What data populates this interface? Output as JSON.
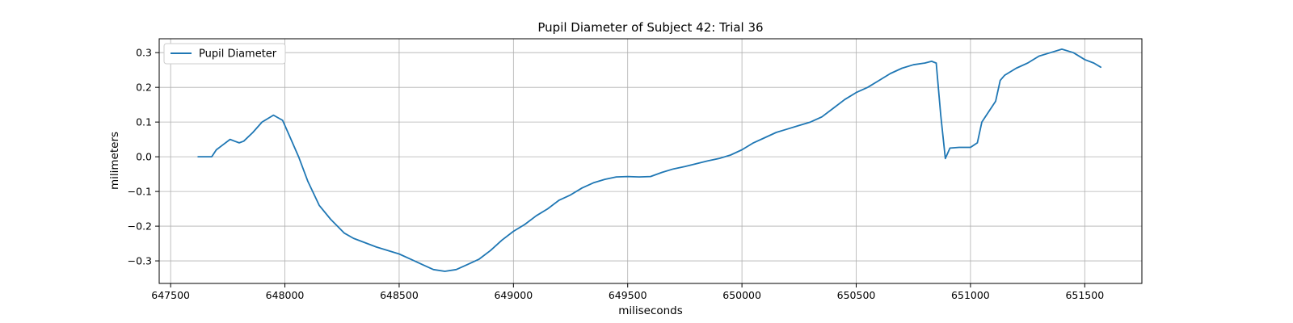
{
  "chart_data": {
    "type": "line",
    "title": "Pupil Diameter of Subject 42: Trial 36",
    "xlabel": "miliseconds",
    "ylabel": "milimeters",
    "xlim": [
      647450,
      651750
    ],
    "ylim": [
      -0.365,
      0.34
    ],
    "x_ticks": [
      647500,
      648000,
      648500,
      649000,
      649500,
      650000,
      650500,
      651000,
      651500
    ],
    "y_ticks": [
      0.3,
      0.2,
      0.1,
      0.0,
      -0.1,
      -0.2,
      -0.3
    ],
    "y_tick_labels": [
      "0.3",
      "0.2",
      "0.1",
      "0.0",
      "−0.1",
      "−0.2",
      "−0.3"
    ],
    "grid": true,
    "legend_position": "top-left",
    "series": [
      {
        "name": "Pupil Diameter",
        "color": "#1f77b4",
        "x": [
          647620,
          647680,
          647700,
          647720,
          647760,
          647780,
          647800,
          647820,
          647860,
          647900,
          647950,
          647990,
          648020,
          648060,
          648100,
          648150,
          648200,
          648260,
          648300,
          648400,
          648500,
          648550,
          648600,
          648650,
          648700,
          648750,
          648800,
          648850,
          648900,
          648950,
          649000,
          649050,
          649100,
          649150,
          649200,
          649250,
          649300,
          649350,
          649400,
          649450,
          649500,
          649550,
          649600,
          649650,
          649700,
          649750,
          649800,
          649850,
          649900,
          649950,
          650000,
          650050,
          650100,
          650150,
          650200,
          650250,
          650300,
          650350,
          650400,
          650450,
          650500,
          650550,
          650600,
          650650,
          650700,
          650750,
          650800,
          650830,
          650850,
          650870,
          650890,
          650910,
          650950,
          651000,
          651030,
          651050,
          651080,
          651110,
          651130,
          651150,
          651200,
          651250,
          651300,
          651350,
          651400,
          651450,
          651500,
          651540,
          651570
        ],
        "y": [
          0.0,
          0.0,
          0.02,
          0.03,
          0.05,
          0.045,
          0.04,
          0.045,
          0.07,
          0.1,
          0.12,
          0.105,
          0.06,
          0.0,
          -0.07,
          -0.14,
          -0.18,
          -0.22,
          -0.235,
          -0.26,
          -0.28,
          -0.295,
          -0.31,
          -0.325,
          -0.33,
          -0.325,
          -0.31,
          -0.295,
          -0.27,
          -0.24,
          -0.215,
          -0.195,
          -0.17,
          -0.15,
          -0.125,
          -0.11,
          -0.09,
          -0.075,
          -0.065,
          -0.058,
          -0.057,
          -0.058,
          -0.057,
          -0.045,
          -0.035,
          -0.028,
          -0.02,
          -0.012,
          -0.005,
          0.005,
          0.02,
          0.04,
          0.055,
          0.07,
          0.08,
          0.09,
          0.1,
          0.115,
          0.14,
          0.165,
          0.185,
          0.2,
          0.22,
          0.24,
          0.255,
          0.265,
          0.27,
          0.275,
          0.27,
          0.12,
          -0.005,
          0.025,
          0.027,
          0.027,
          0.04,
          0.1,
          0.13,
          0.16,
          0.22,
          0.235,
          0.255,
          0.27,
          0.29,
          0.3,
          0.31,
          0.3,
          0.28,
          0.27,
          0.258
        ]
      }
    ]
  }
}
